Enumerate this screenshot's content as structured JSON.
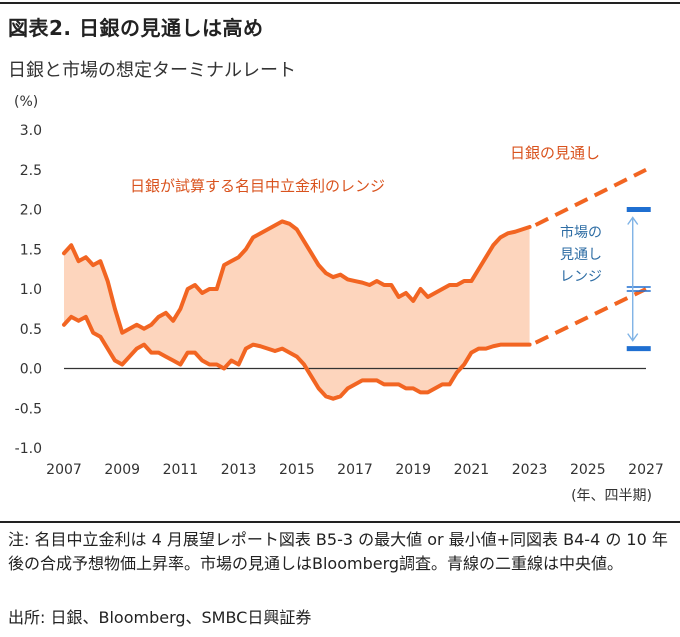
{
  "figure_title": "図表2.  日銀の見通しは高め",
  "chart_data": {
    "type": "area",
    "title": "日銀と市場の想定ターミナルレート",
    "ylabel": "(%)",
    "xlabel": "(年、四半期)",
    "ylim": [
      -1.0,
      3.0
    ],
    "xlim": [
      2007,
      2027
    ],
    "yticks": [
      "3.0",
      "2.5",
      "2.0",
      "1.5",
      "1.0",
      "0.5",
      "0.0",
      "-0.5",
      "-1.0"
    ],
    "xticks": [
      "2007",
      "2009",
      "2011",
      "2013",
      "2015",
      "2017",
      "2019",
      "2021",
      "2023",
      "2025",
      "2027"
    ],
    "grid": false,
    "series": [
      {
        "name": "日銀が試算する名目中立金利のレンジ",
        "upper": {
          "x": [
            2007.0,
            2007.25,
            2007.5,
            2007.75,
            2008.0,
            2008.25,
            2008.5,
            2008.75,
            2009.0,
            2009.25,
            2009.5,
            2009.75,
            2010.0,
            2010.25,
            2010.5,
            2010.75,
            2011.0,
            2011.25,
            2011.5,
            2011.75,
            2012.0,
            2012.25,
            2012.5,
            2012.75,
            2013.0,
            2013.25,
            2013.5,
            2013.75,
            2014.0,
            2014.25,
            2014.5,
            2014.75,
            2015.0,
            2015.25,
            2015.5,
            2015.75,
            2016.0,
            2016.25,
            2016.5,
            2016.75,
            2017.0,
            2017.25,
            2017.5,
            2017.75,
            2018.0,
            2018.25,
            2018.5,
            2018.75,
            2019.0,
            2019.25,
            2019.5,
            2019.75,
            2020.0,
            2020.25,
            2020.5,
            2020.75,
            2021.0,
            2021.25,
            2021.5,
            2021.75,
            2022.0,
            2022.25,
            2022.5,
            2022.75,
            2023.0
          ],
          "y": [
            1.45,
            1.55,
            1.35,
            1.4,
            1.3,
            1.35,
            1.1,
            0.75,
            0.45,
            0.5,
            0.55,
            0.5,
            0.55,
            0.65,
            0.7,
            0.6,
            0.75,
            1.0,
            1.05,
            0.95,
            1.0,
            1.0,
            1.3,
            1.35,
            1.4,
            1.5,
            1.65,
            1.7,
            1.75,
            1.8,
            1.85,
            1.82,
            1.75,
            1.6,
            1.45,
            1.3,
            1.2,
            1.15,
            1.18,
            1.12,
            1.1,
            1.08,
            1.05,
            1.1,
            1.05,
            1.05,
            0.9,
            0.95,
            0.85,
            1.0,
            0.9,
            0.95,
            1.0,
            1.05,
            1.05,
            1.1,
            1.1,
            1.25,
            1.4,
            1.55,
            1.65,
            1.7,
            1.72,
            1.75,
            1.78
          ]
        },
        "lower": {
          "x": [
            2007.0,
            2007.25,
            2007.5,
            2007.75,
            2008.0,
            2008.25,
            2008.5,
            2008.75,
            2009.0,
            2009.25,
            2009.5,
            2009.75,
            2010.0,
            2010.25,
            2010.5,
            2010.75,
            2011.0,
            2011.25,
            2011.5,
            2011.75,
            2012.0,
            2012.25,
            2012.5,
            2012.75,
            2013.0,
            2013.25,
            2013.5,
            2013.75,
            2014.0,
            2014.25,
            2014.5,
            2014.75,
            2015.0,
            2015.25,
            2015.5,
            2015.75,
            2016.0,
            2016.25,
            2016.5,
            2016.75,
            2017.0,
            2017.25,
            2017.5,
            2017.75,
            2018.0,
            2018.25,
            2018.5,
            2018.75,
            2019.0,
            2019.25,
            2019.5,
            2019.75,
            2020.0,
            2020.25,
            2020.5,
            2020.75,
            2021.0,
            2021.25,
            2021.5,
            2021.75,
            2022.0,
            2022.25,
            2022.5,
            2022.75,
            2023.0
          ],
          "y": [
            0.55,
            0.65,
            0.6,
            0.65,
            0.45,
            0.4,
            0.25,
            0.1,
            0.05,
            0.15,
            0.25,
            0.3,
            0.2,
            0.2,
            0.15,
            0.1,
            0.05,
            0.2,
            0.2,
            0.1,
            0.05,
            0.05,
            0.0,
            0.1,
            0.05,
            0.25,
            0.3,
            0.28,
            0.25,
            0.22,
            0.25,
            0.2,
            0.15,
            0.05,
            -0.1,
            -0.25,
            -0.35,
            -0.38,
            -0.35,
            -0.25,
            -0.2,
            -0.15,
            -0.15,
            -0.15,
            -0.2,
            -0.2,
            -0.2,
            -0.25,
            -0.25,
            -0.3,
            -0.3,
            -0.25,
            -0.2,
            -0.2,
            -0.05,
            0.05,
            0.2,
            0.25,
            0.25,
            0.28,
            0.3,
            0.3,
            0.3,
            0.3,
            0.3
          ]
        }
      },
      {
        "name": "日銀の見通し",
        "x": [
          2023.0,
          2027.0
        ],
        "upper": [
          1.78,
          2.5
        ],
        "lower": [
          0.3,
          1.0
        ]
      },
      {
        "name": "市場の見通しレンジ",
        "x": 2026.75,
        "upper": 2.0,
        "center": 1.0,
        "lower": 0.25
      }
    ],
    "annotations": [
      "日銀が試算する名目中立金利のレンジ",
      "日銀の見通し",
      "市場の見通しレンジ"
    ],
    "colors": {
      "line": "#f26522",
      "band": "#fdd5bd",
      "market": "#1f6fd1",
      "arrow": "#7fb3e6",
      "text_red": "#d9531e",
      "text_blue": "#2e6da4"
    }
  },
  "annotation_market_lines": [
    "市場の",
    "見通し",
    "レンジ"
  ],
  "note": "注: 名目中立金利は 4 月展望レポート図表 B5-3 の最大値 or 最小値+同図表 B4-4 の 10 年後の合成予想物価上昇率。市場の見通しはBloomberg調査。青線の二重線は中央値。",
  "source": "出所: 日銀、Bloomberg、SMBC日興証券"
}
